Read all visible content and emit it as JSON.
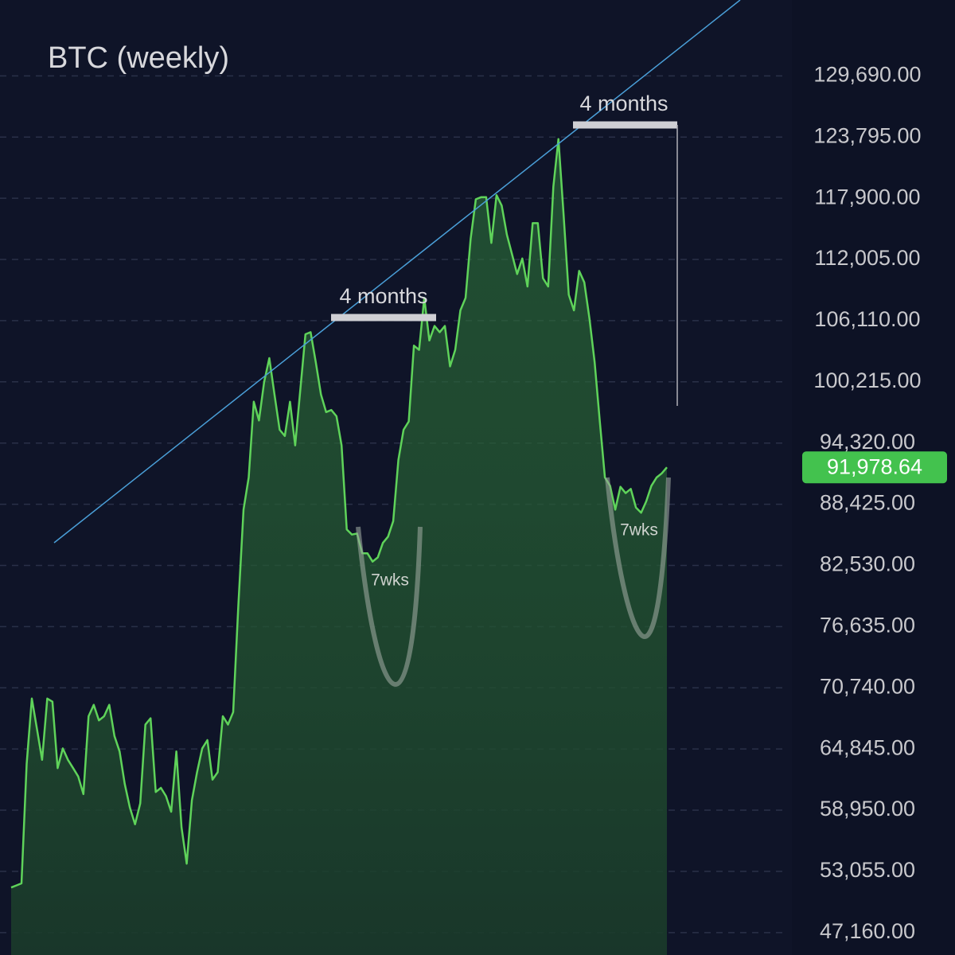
{
  "chart_data": {
    "type": "area",
    "title": "BTC (weekly)",
    "color": "#5fd35a",
    "values": [
      51500,
      51700,
      51900,
      63400,
      69700,
      66800,
      63800,
      69700,
      69400,
      63000,
      64900,
      63800,
      63000,
      62200,
      60500,
      68000,
      69100,
      67600,
      68000,
      69100,
      66100,
      64600,
      61500,
      59200,
      57600,
      59600,
      67200,
      67800,
      60700,
      61100,
      60300,
      58800,
      64600,
      57300,
      53800,
      59900,
      62600,
      64900,
      65700,
      61900,
      62600,
      68000,
      67200,
      68400,
      78700,
      87900,
      91000,
      98300,
      96500,
      100200,
      102500,
      99000,
      95600,
      95000,
      98300,
      94100,
      99400,
      104800,
      105000,
      102100,
      99000,
      97300,
      97500,
      96900,
      94100,
      86000,
      85500,
      85600,
      83700,
      83700,
      82900,
      83300,
      84700,
      85300,
      86800,
      92700,
      95600,
      96400,
      103700,
      103300,
      108300,
      104200,
      105600,
      105000,
      105600,
      101700,
      103300,
      107100,
      108300,
      114000,
      117800,
      118000,
      118000,
      113600,
      118200,
      117200,
      114400,
      112500,
      110600,
      112100,
      109400,
      115500,
      115500,
      110200,
      109400,
      119000,
      123600,
      116300,
      108600,
      107100,
      110900,
      109800,
      106300,
      102100,
      96400,
      91000,
      90200,
      87900,
      90100,
      89500,
      89900,
      88100,
      87600,
      88700,
      90200,
      91000,
      91400,
      91978.64
    ],
    "ylim": [
      45000,
      137000
    ],
    "yticks": [
      {
        "value": 47160,
        "label": "47,160.00"
      },
      {
        "value": 53055,
        "label": "53,055.00"
      },
      {
        "value": 58950,
        "label": "58,950.00"
      },
      {
        "value": 64845,
        "label": "64,845.00"
      },
      {
        "value": 70740,
        "label": "70,740.00"
      },
      {
        "value": 76635,
        "label": "76,635.00"
      },
      {
        "value": 82530,
        "label": "82,530.00"
      },
      {
        "value": 88425,
        "label": "88,425.00"
      },
      {
        "value": 94320,
        "label": "94,320.00"
      },
      {
        "value": 100215,
        "label": "100,215.00"
      },
      {
        "value": 106110,
        "label": "106,110.00"
      },
      {
        "value": 112005,
        "label": "112,005.00"
      },
      {
        "value": 117900,
        "label": "117,900.00"
      },
      {
        "value": 123795,
        "label": "123,795.00"
      },
      {
        "value": 129690,
        "label": "129,690.00"
      }
    ],
    "grid": true,
    "price_tag": {
      "value": 91978.64,
      "label": "91,978.64"
    },
    "annotations": [
      "4 months",
      "4 months",
      "7wks",
      "7wks"
    ]
  }
}
